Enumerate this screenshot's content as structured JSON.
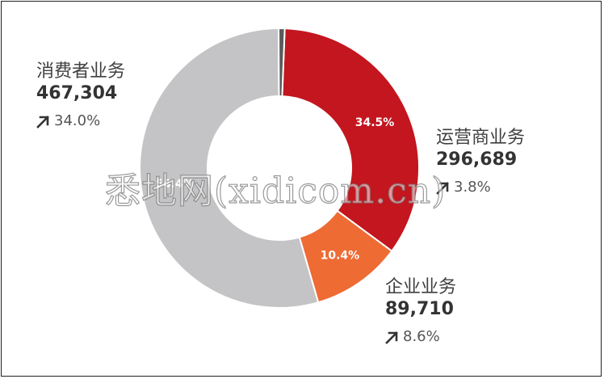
{
  "chart_data": {
    "type": "pie",
    "variant": "donut",
    "slices": [
      {
        "key": "carrier",
        "label": "运营商业务",
        "revenue": "296,689",
        "share_pct": 34.5,
        "share_label": "34.5%",
        "growth": "3.8%",
        "color": "#c3161f"
      },
      {
        "key": "enterprise",
        "label": "企业业务",
        "revenue": "89,710",
        "share_pct": 10.4,
        "share_label": "10.4%",
        "growth": "8.6%",
        "color": "#ee6b34"
      },
      {
        "key": "consumer",
        "label": "消费者业务",
        "revenue": "467,304",
        "share_pct": 54.4,
        "share_label": "54.4%",
        "growth": "34.0%",
        "color": "#c4c4c6"
      },
      {
        "key": "other",
        "label": "",
        "share_pct": 0.7,
        "share_label": "",
        "color": "#5a5a5a"
      }
    ]
  },
  "watermark": "悉地网(xidicom.cn)",
  "icons": {
    "growth": "arrow-up-right-icon"
  },
  "colors": {
    "text": "#3c3c3c",
    "separator": "#ffffff"
  }
}
